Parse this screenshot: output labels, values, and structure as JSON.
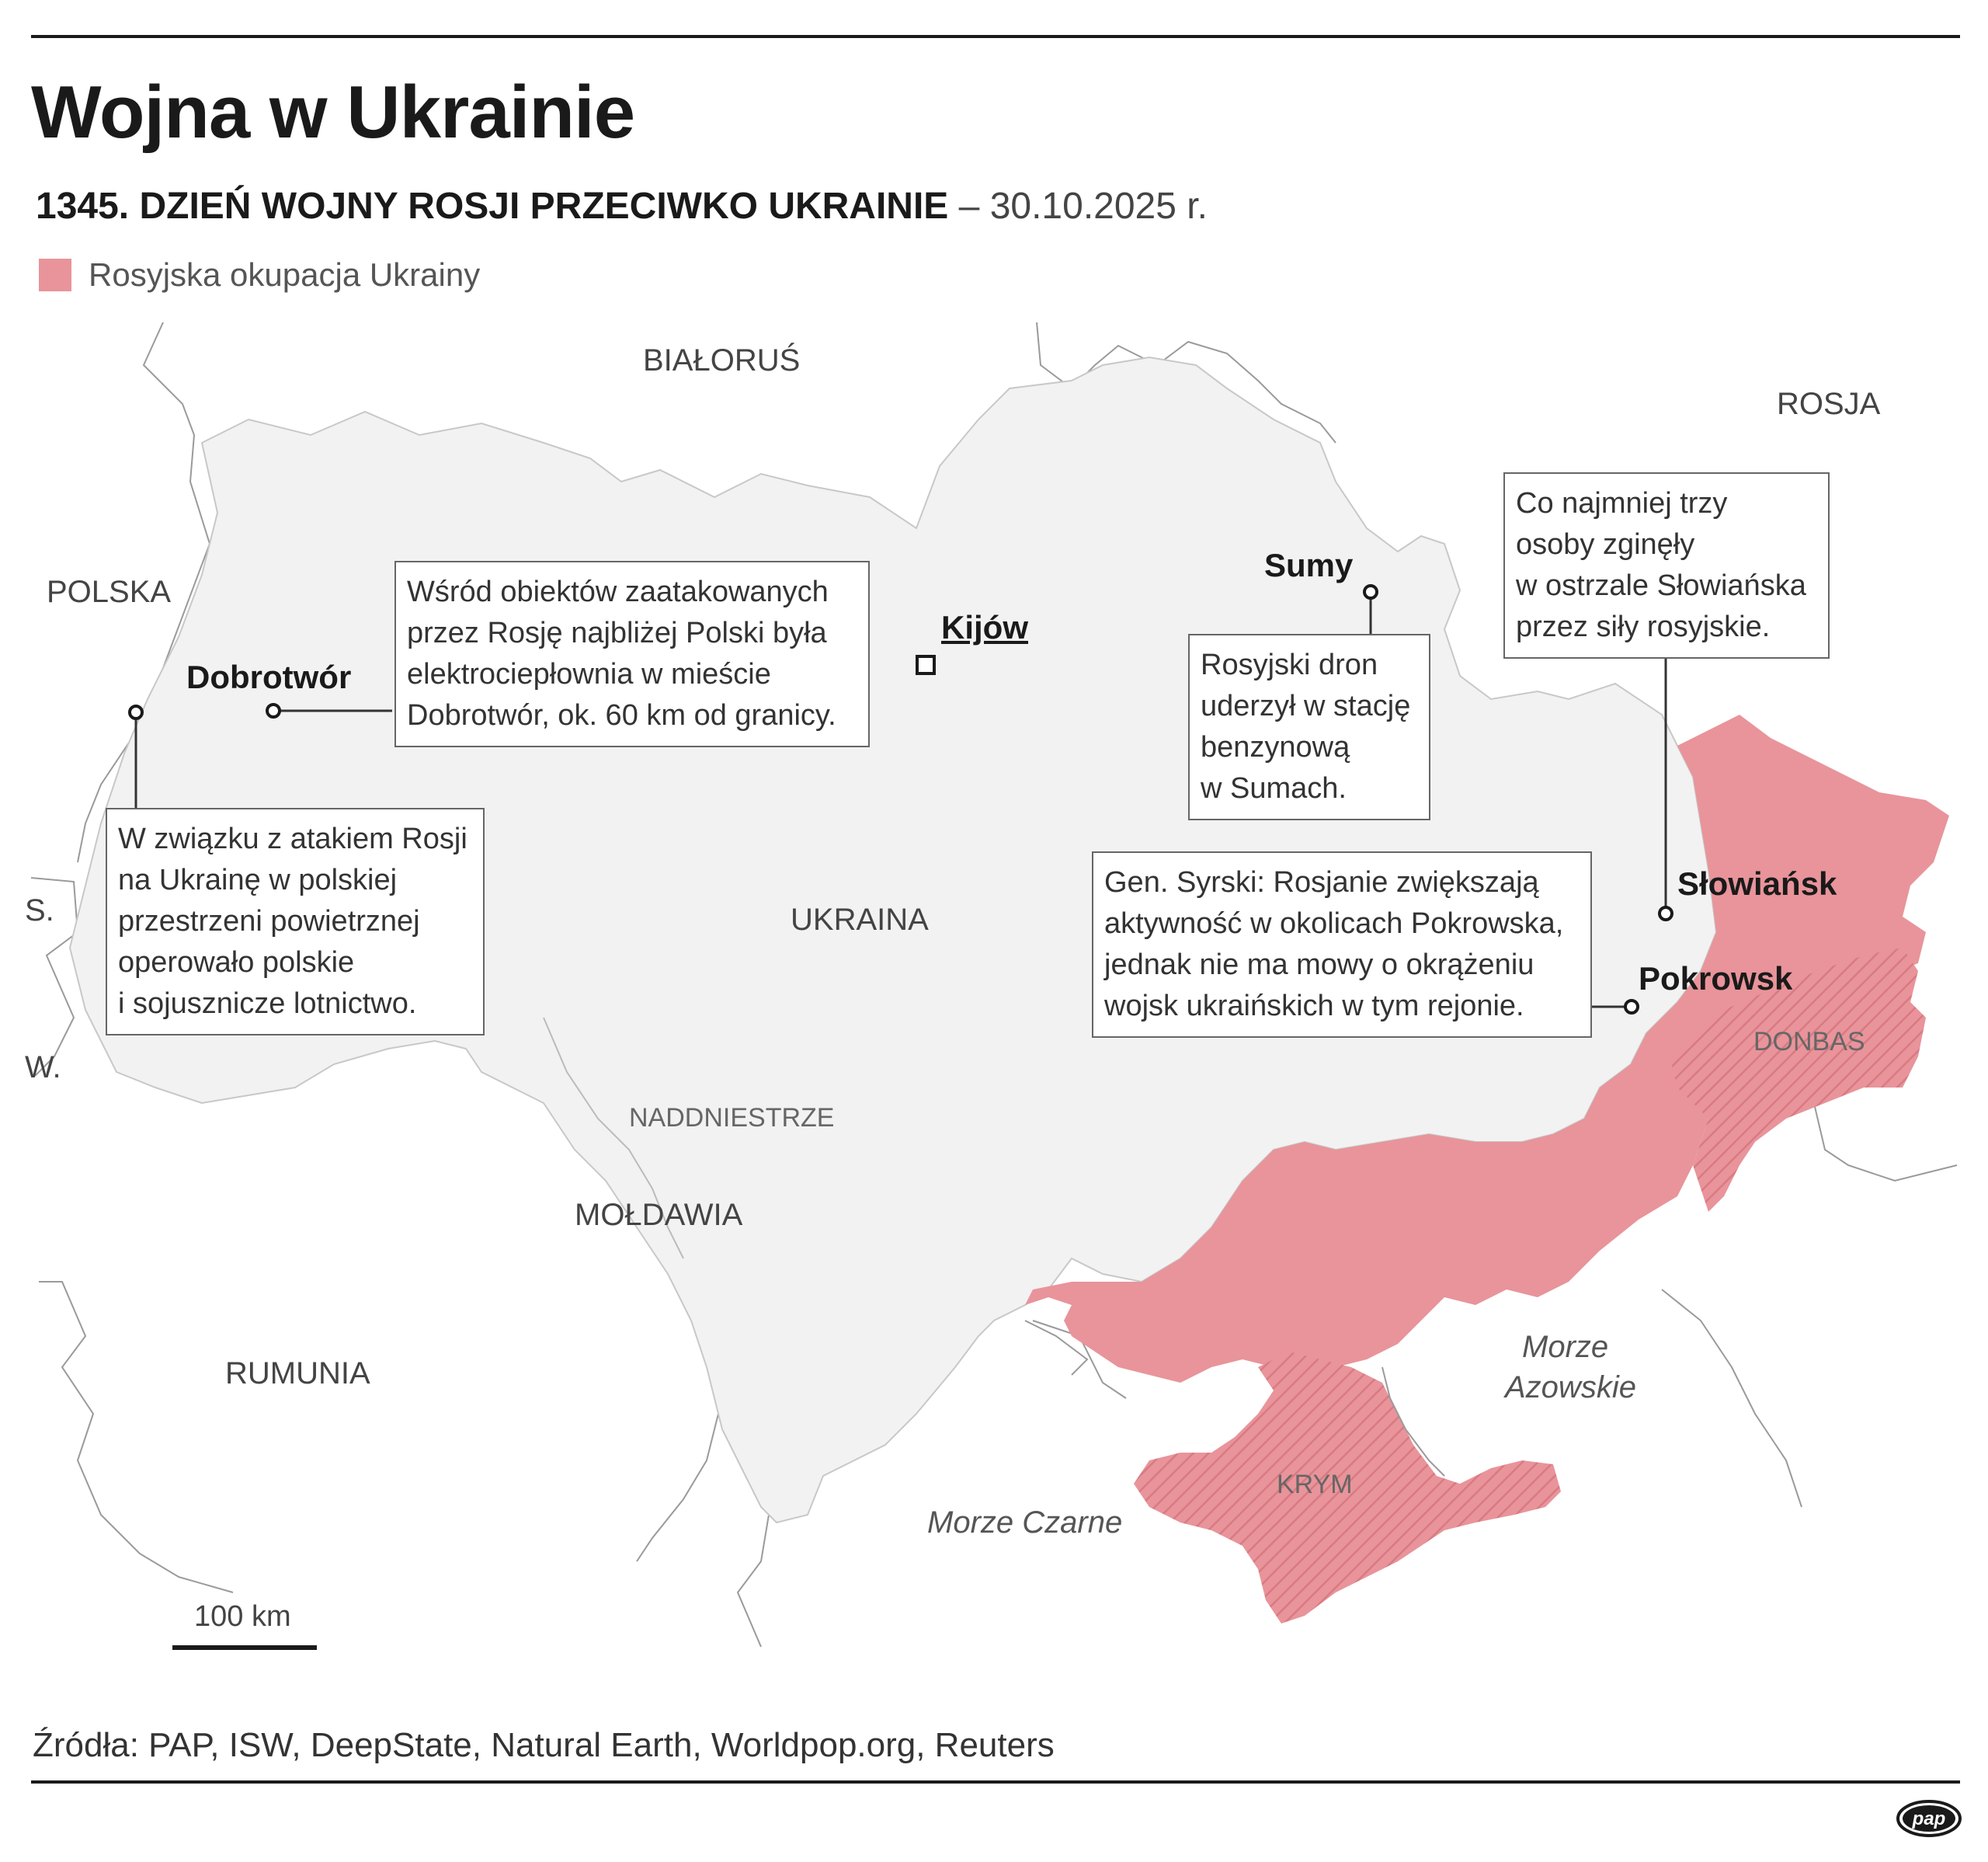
{
  "header": {
    "title": "Wojna w Ukrainie",
    "subtitle_bold": "1345. DZIEŃ WOJNY ROSJI PRZECIWKO UKRAINIE",
    "subtitle_date": " – 30.10.2025 r."
  },
  "legend": {
    "occupation_label": "Rosyjska okupacja Ukrainy",
    "occupation_color": "#e8949a"
  },
  "colors": {
    "land": "#f2f2f2",
    "occupied": "#e8949a",
    "border": "#9a9a9a",
    "text": "#1a1a1a"
  },
  "map": {
    "countries": {
      "bialorus": "BIAŁORUŚ",
      "rosja": "ROSJA",
      "polska": "POLSKA",
      "ukraina": "UKRAINA",
      "moldawia": "MOŁDAWIA",
      "rumunia": "RUMUNIA",
      "slowacja_abbr": "S.",
      "wegry_abbr": "W."
    },
    "regions": {
      "naddniestrze": "NADDNIESTRZE",
      "donbas": "DONBAS",
      "krym": "KRYM"
    },
    "seas": {
      "morze_czarne": "Morze Czarne",
      "morze_azowskie_line1": "Morze",
      "morze_azowskie_line2": "Azowskie"
    },
    "cities": {
      "kijow": "Kijów",
      "dobrotwor": "Dobrotwór",
      "sumy": "Sumy",
      "slowiansk": "Słowiańsk",
      "pokrowsk": "Pokrowsk"
    },
    "callouts": {
      "dobrotwor": [
        "Wśród obiektów zaatakowanych",
        "przez Rosję najbliżej Polski była",
        "elektrociepłownia w mieście",
        "Dobrotwór, ok. 60 km od granicy."
      ],
      "polska": [
        "W związku z atakiem Rosji",
        "na Ukrainę w polskiej",
        "przestrzeni powietrznej",
        "operowało polskie",
        "i sojusznicze lotnictwo."
      ],
      "sumy": [
        "Rosyjski dron",
        "uderzył w stację",
        "benzynową",
        "w Sumach."
      ],
      "slowiansk": [
        "Co najmniej trzy",
        "osoby zginęły",
        "w ostrzale Słowiańska",
        "przez siły rosyjskie."
      ],
      "pokrowsk": [
        "Gen. Syrski: Rosjanie zwiększają",
        "aktywność w okolicach Pokrowska,",
        "jednak nie ma mowy o okrążeniu",
        "wojsk ukraińskich w tym rejonie."
      ]
    },
    "scale_label": "100 km"
  },
  "footer": {
    "source": "Źródła: PAP, ISW, DeepState, Natural Earth, Worldpop.org, Reuters",
    "logo": "pap"
  }
}
